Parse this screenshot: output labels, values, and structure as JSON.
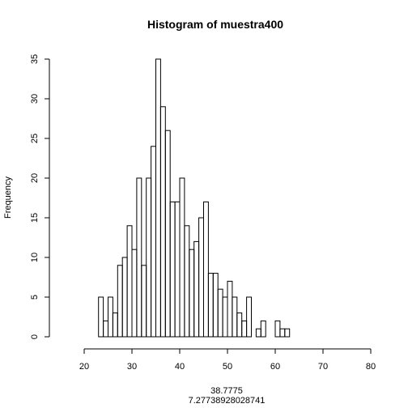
{
  "chart_data": {
    "type": "bar",
    "title": "Histogram of muestra400",
    "ylabel": "Frequency",
    "xlabel_lines": [
      "38.7775",
      "7.27738928028741"
    ],
    "bin_start": 23,
    "bin_width": 1,
    "values": [
      5,
      2,
      5,
      3,
      9,
      10,
      14,
      11,
      20,
      9,
      20,
      24,
      35,
      29,
      26,
      17,
      17,
      20,
      14,
      11,
      12,
      15,
      17,
      8,
      8,
      6,
      5,
      7,
      5,
      3,
      2,
      5,
      0,
      1,
      2,
      0,
      0,
      2,
      1,
      1
    ],
    "xlim": [
      20,
      80
    ],
    "ylim": [
      0,
      35
    ],
    "xticks": [
      20,
      30,
      40,
      50,
      60,
      70,
      80
    ],
    "yticks": [
      0,
      5,
      10,
      15,
      20,
      25,
      30,
      35
    ],
    "grid": false,
    "legend": "none"
  }
}
